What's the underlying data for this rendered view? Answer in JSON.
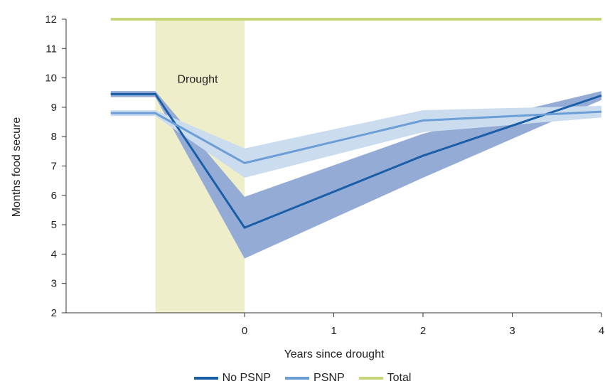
{
  "chart_data": {
    "type": "line",
    "xlabel": "Years since drought",
    "ylabel": "Months food secure",
    "xlim": [
      -2,
      4
    ],
    "ylim": [
      2,
      12
    ],
    "xticks": [
      0,
      1,
      2,
      3,
      4
    ],
    "yticks": [
      2,
      3,
      4,
      5,
      6,
      7,
      8,
      9,
      10,
      11,
      12
    ],
    "shaded_region": {
      "label": "Drought",
      "x_start": -1,
      "x_end": 0,
      "color": "#eeeecb"
    },
    "series": [
      {
        "name": "No PSNP",
        "color": "#1a5ea8",
        "band_color": "#94abd6",
        "x": [
          -1.5,
          -1,
          0,
          2,
          4
        ],
        "values": [
          9.45,
          9.45,
          4.9,
          7.35,
          9.4
        ],
        "lower": [
          9.35,
          9.35,
          3.85,
          6.6,
          9.25
        ],
        "upper": [
          9.55,
          9.55,
          5.95,
          8.1,
          9.55
        ]
      },
      {
        "name": "PSNP",
        "color": "#6c9ed6",
        "band_color": "#ccdcef",
        "x": [
          -1.5,
          -1,
          0,
          2,
          4
        ],
        "values": [
          8.8,
          8.8,
          7.1,
          8.55,
          8.85
        ],
        "lower": [
          8.7,
          8.7,
          6.6,
          8.15,
          8.65
        ],
        "upper": [
          8.9,
          8.9,
          7.6,
          8.9,
          9.05
        ]
      },
      {
        "name": "Total",
        "color": "#c9d57a",
        "x": [
          -1.5,
          4
        ],
        "values": [
          12,
          12
        ]
      }
    ]
  }
}
